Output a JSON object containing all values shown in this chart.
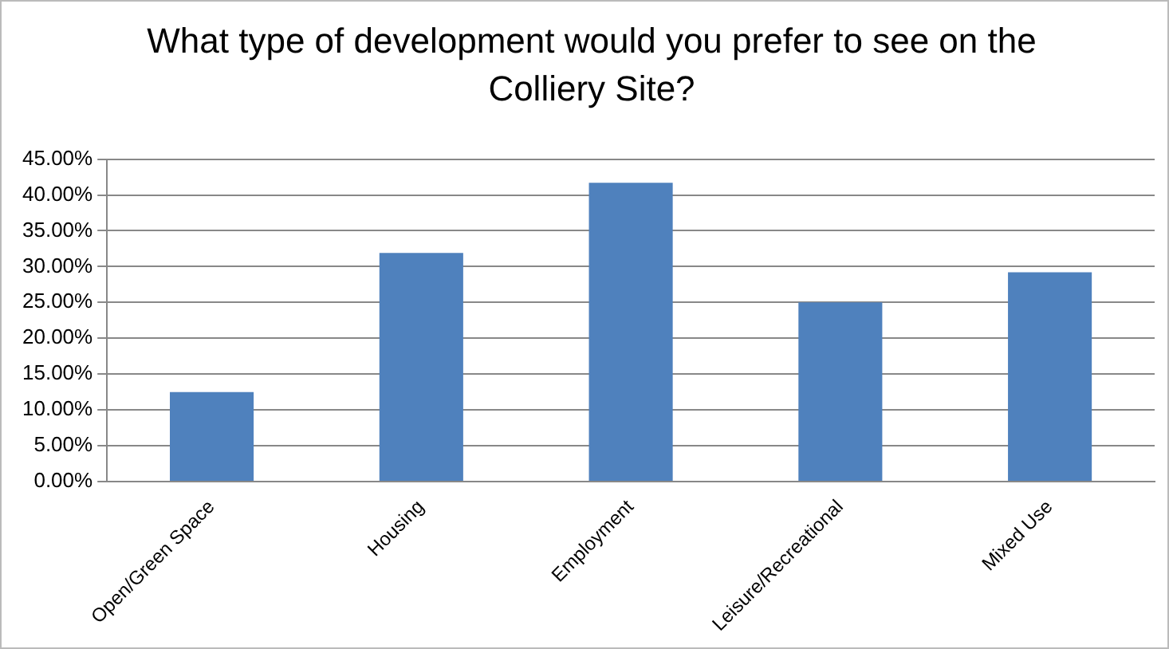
{
  "chart_data": {
    "type": "bar",
    "title": "What type of development would you prefer to see on the Colliery Site?",
    "categories": [
      "Open/Green Space",
      "Housing",
      "Employment",
      "Leisure/Recreational",
      "Mixed Use"
    ],
    "values": [
      12.5,
      31.9,
      41.7,
      25.0,
      29.2
    ],
    "color": "#4f81bd",
    "ylim": [
      0,
      45
    ],
    "yticks": [
      {
        "value": 0,
        "label": "0.00%"
      },
      {
        "value": 5,
        "label": "5.00%"
      },
      {
        "value": 10,
        "label": "10.00%"
      },
      {
        "value": 15,
        "label": "15.00%"
      },
      {
        "value": 20,
        "label": "20.00%"
      },
      {
        "value": 25,
        "label": "25.00%"
      },
      {
        "value": 30,
        "label": "30.00%"
      },
      {
        "value": 35,
        "label": "35.00%"
      },
      {
        "value": 40,
        "label": "40.00%"
      },
      {
        "value": 45,
        "label": "45.00%"
      }
    ],
    "grid": "y",
    "legend": false
  }
}
